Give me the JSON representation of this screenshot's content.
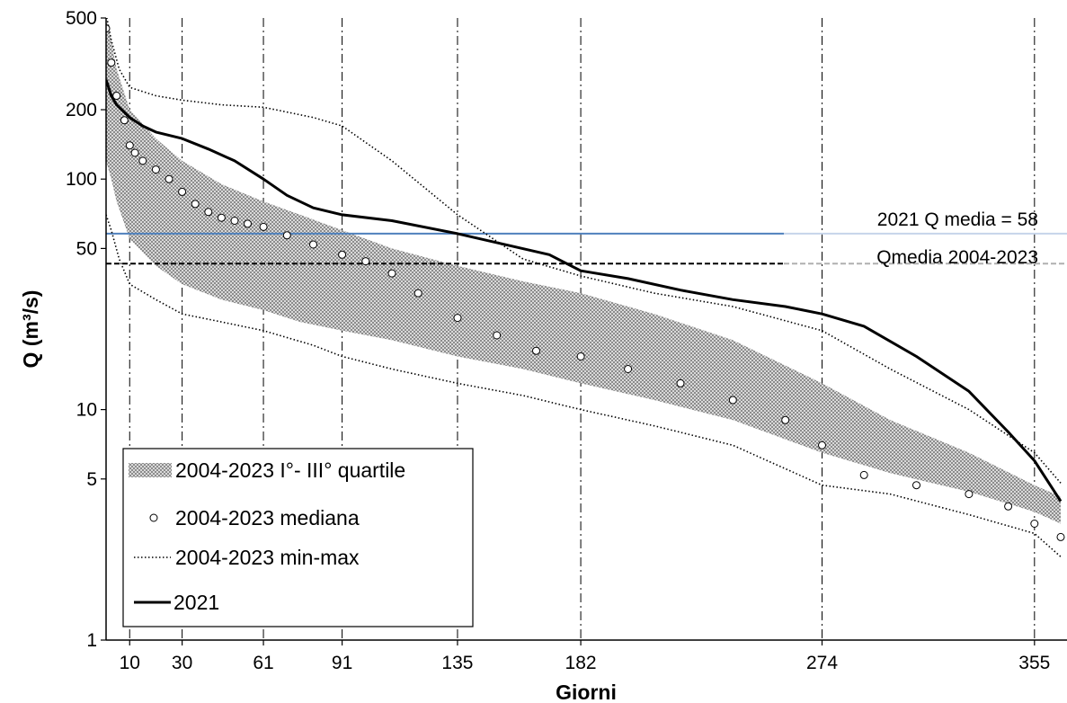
{
  "chart_data": {
    "type": "line",
    "xlabel": "Giorni",
    "ylabel": "Q (m³/s)",
    "yscale": "log",
    "ylim": [
      1,
      500
    ],
    "xlim": [
      1,
      365
    ],
    "x_ticks": [
      10,
      30,
      61,
      91,
      135,
      182,
      274,
      355
    ],
    "y_ticks": [
      1,
      5,
      10,
      50,
      100,
      200,
      500
    ],
    "vertical_gridlines_at": [
      10,
      30,
      61,
      91,
      135,
      182,
      274,
      355
    ],
    "legend_position": "bottom-left",
    "series": [
      {
        "name": "2004-2023 I°- III° quartile",
        "kind": "band",
        "x": [
          1,
          3,
          5,
          10,
          20,
          30,
          45,
          61,
          75,
          91,
          110,
          135,
          160,
          182,
          210,
          240,
          274,
          300,
          330,
          355,
          365
        ],
        "lower": [
          120,
          100,
          80,
          55,
          42,
          35,
          30,
          27,
          24,
          22,
          20,
          17,
          15,
          13,
          11,
          9,
          6.5,
          5.3,
          4.4,
          3.6,
          3.2
        ],
        "upper": [
          500,
          400,
          300,
          200,
          150,
          120,
          95,
          80,
          70,
          60,
          50,
          42,
          36,
          32,
          26,
          20,
          13,
          9,
          6.5,
          4.7,
          4.2
        ]
      },
      {
        "name": "2004-2023 mediana",
        "kind": "markers",
        "x": [
          1,
          3,
          5,
          8,
          10,
          12,
          15,
          20,
          25,
          30,
          35,
          40,
          45,
          50,
          55,
          61,
          70,
          80,
          91,
          100,
          110,
          120,
          135,
          150,
          165,
          182,
          200,
          220,
          240,
          260,
          274,
          290,
          310,
          330,
          345,
          355,
          365
        ],
        "y": [
          450,
          320,
          230,
          180,
          140,
          130,
          120,
          110,
          100,
          88,
          78,
          72,
          68,
          66,
          64,
          62,
          57,
          52,
          47,
          44,
          39,
          32,
          25,
          21,
          18,
          17,
          15,
          13,
          11,
          9,
          7,
          5.2,
          4.7,
          4.3,
          3.8,
          3.2,
          2.8
        ]
      },
      {
        "name": "2004-2023 min-max",
        "kind": "dotted",
        "x": [
          1,
          3,
          6,
          10,
          20,
          30,
          45,
          61,
          80,
          91,
          110,
          135,
          160,
          182,
          210,
          240,
          274,
          300,
          330,
          355,
          365
        ],
        "lower": [
          70,
          60,
          45,
          35,
          30,
          26,
          24,
          22,
          19,
          17,
          15,
          13,
          11.5,
          10,
          8.5,
          7,
          4.7,
          4.3,
          3.5,
          2.9,
          2.3
        ],
        "upper": [
          520,
          400,
          300,
          250,
          230,
          220,
          210,
          205,
          185,
          170,
          120,
          70,
          45,
          38,
          32,
          28,
          22,
          15,
          10,
          6.5,
          4.8
        ]
      },
      {
        "name": "2021",
        "kind": "line",
        "x": [
          1,
          3,
          5,
          10,
          15,
          20,
          30,
          40,
          50,
          61,
          70,
          80,
          91,
          110,
          135,
          150,
          170,
          182,
          200,
          220,
          240,
          260,
          274,
          290,
          310,
          330,
          345,
          355,
          365
        ],
        "y": [
          270,
          230,
          210,
          185,
          170,
          160,
          150,
          135,
          120,
          100,
          85,
          75,
          70,
          66,
          58,
          53,
          47,
          40,
          37,
          33,
          30,
          28,
          26,
          23,
          17,
          12,
          8,
          6,
          4
        ]
      }
    ],
    "hlines": [
      {
        "name": "2021 Q media",
        "value": 58,
        "label": "2021 Q media =  58",
        "color": "#4f81bd",
        "fade_color": "#c6d4ea"
      },
      {
        "name": "Qmedia 2004-2023",
        "value": 43,
        "label": "Qmedia 2004-2023",
        "color": "#000000",
        "fade_color": "#b0b0b0"
      }
    ]
  }
}
